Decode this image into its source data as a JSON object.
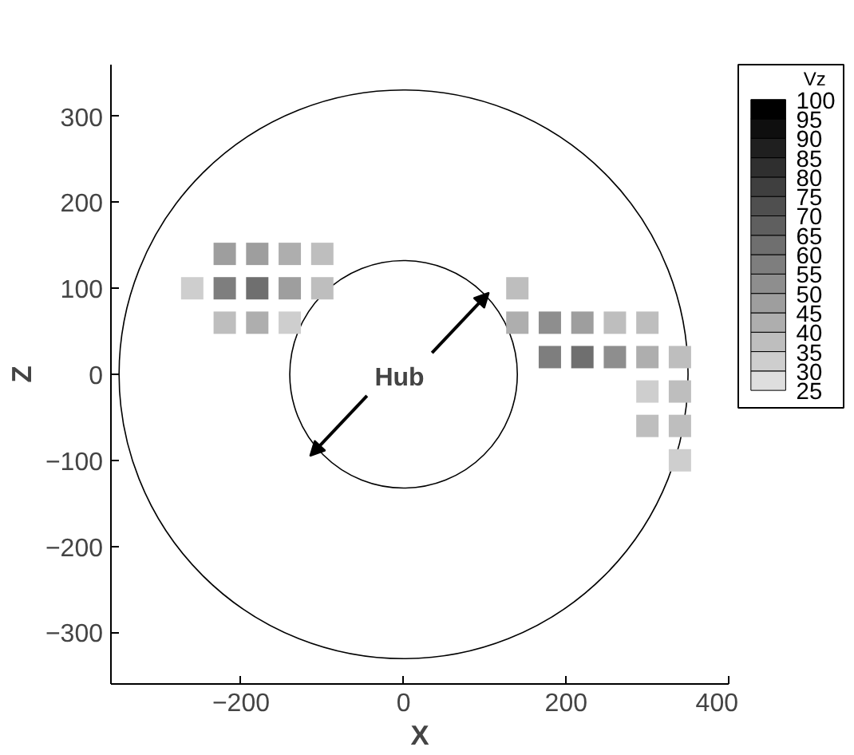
{
  "chart_data": {
    "type": "scatter",
    "marker": "square",
    "xlabel": "X",
    "ylabel": "Z",
    "clabel": "Vz",
    "annotations": [
      "Hub"
    ],
    "xlim": [
      -360,
      400
    ],
    "ylim": [
      -360,
      360
    ],
    "xticks": [
      -200,
      0,
      200,
      400
    ],
    "yticks": [
      -300,
      -200,
      -100,
      0,
      100,
      200,
      300
    ],
    "clim": [
      25,
      100
    ],
    "cticks": [
      25,
      30,
      35,
      40,
      45,
      50,
      55,
      60,
      65,
      70,
      75,
      80,
      85,
      90,
      95,
      100
    ],
    "grid": false,
    "x": [
      -220,
      -180,
      -140,
      -100,
      -260,
      -220,
      -180,
      -140,
      -100,
      140,
      -220,
      -180,
      -140,
      140,
      180,
      220,
      260,
      300,
      180,
      220,
      260,
      300,
      340,
      300,
      340,
      300,
      340,
      340
    ],
    "values": [
      140,
      140,
      140,
      140,
      100,
      100,
      100,
      100,
      100,
      100,
      60,
      60,
      60,
      60,
      60,
      60,
      60,
      60,
      20,
      20,
      20,
      20,
      20,
      -20,
      -20,
      -60,
      -60,
      -100
    ],
    "cvalues": [
      45,
      45,
      40,
      35,
      30,
      55,
      60,
      45,
      35,
      35,
      35,
      40,
      30,
      40,
      50,
      45,
      35,
      35,
      55,
      60,
      50,
      40,
      35,
      30,
      35,
      35,
      35,
      30
    ]
  }
}
